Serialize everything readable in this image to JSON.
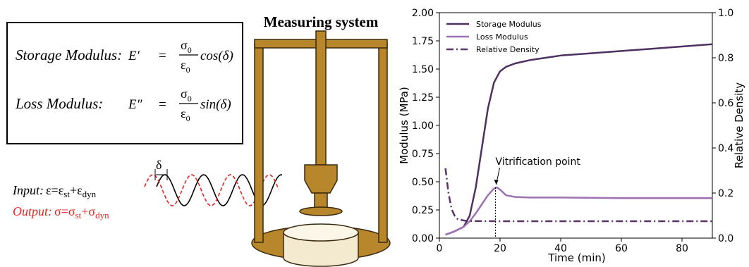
{
  "diagram": {
    "measuring_system": "Measuring system",
    "storage": {
      "label": "Storage Modulus:",
      "lhs": "E′",
      "eq": "=",
      "num": "σ",
      "num_sub": "0",
      "den": "ε",
      "den_sub": "0",
      "func": "cos(δ)"
    },
    "loss": {
      "label": "Loss Modulus:",
      "lhs": "E″",
      "eq": "=",
      "num": "σ",
      "num_sub": "0",
      "den": "ε",
      "den_sub": "0",
      "func": "sin(δ)"
    },
    "delta": "δ",
    "input": {
      "label": "Input:",
      "eq": "ε=ε",
      "sub1": "st",
      "plus": "+ε",
      "sub2": "dyn"
    },
    "output": {
      "label": "Output:",
      "eq": "σ=σ",
      "sub1": "st",
      "plus": "+σ",
      "sub2": "dyn"
    }
  },
  "chart_data": {
    "type": "line",
    "xlabel": "Time (min)",
    "ylabel": "Modulus (MPa)",
    "y2label": "Relative Density",
    "xlim": [
      0,
      90
    ],
    "xticks": [
      0,
      20,
      40,
      60,
      80
    ],
    "ylim": [
      0,
      2
    ],
    "yticks": [
      {
        "value": 0,
        "label": "0.00"
      },
      {
        "value": 0.25,
        "label": "0.25"
      },
      {
        "value": 0.5,
        "label": "0.50"
      },
      {
        "value": 0.75,
        "label": "0.75"
      },
      {
        "value": 1,
        "label": "1.00"
      },
      {
        "value": 1.25,
        "label": "1.25"
      },
      {
        "value": 1.5,
        "label": "1.50"
      },
      {
        "value": 1.75,
        "label": "1.75"
      },
      {
        "value": 2,
        "label": "2.00"
      }
    ],
    "y2lim": [
      0,
      1
    ],
    "y2ticks": [
      {
        "value": 0,
        "label": "0.0"
      },
      0.2,
      0.4,
      0.6,
      0.8,
      {
        "value": 1,
        "label": "1.0"
      }
    ],
    "legend": "upper left",
    "series": [
      {
        "name": "Storage Modulus",
        "color": "#4e3160",
        "linestyle": "solid",
        "x": [
          2,
          5,
          8,
          10,
          12,
          14,
          16,
          18,
          20,
          22,
          25,
          30,
          35,
          40,
          50,
          60,
          70,
          80,
          90
        ],
        "values": [
          0.03,
          0.06,
          0.1,
          0.2,
          0.45,
          0.8,
          1.15,
          1.38,
          1.48,
          1.52,
          1.55,
          1.58,
          1.6,
          1.62,
          1.64,
          1.66,
          1.68,
          1.7,
          1.72
        ]
      },
      {
        "name": "Loss Modulus",
        "color": "#9c72b3",
        "linestyle": "solid",
        "x": [
          2,
          5,
          8,
          10,
          12,
          14,
          16,
          18,
          19,
          20,
          22,
          25,
          30,
          40,
          60,
          80,
          90
        ],
        "values": [
          0.03,
          0.06,
          0.1,
          0.15,
          0.22,
          0.3,
          0.38,
          0.44,
          0.45,
          0.43,
          0.38,
          0.365,
          0.36,
          0.36,
          0.355,
          0.355,
          0.355
        ]
      },
      {
        "name": "Relative Density",
        "color": "#5a3468",
        "linestyle": "dashdot",
        "axis": "y2",
        "x": [
          2,
          3,
          4,
          5,
          6,
          8,
          10,
          20,
          40,
          60,
          90
        ],
        "values": [
          0.31,
          0.2,
          0.13,
          0.1,
          0.085,
          0.078,
          0.076,
          0.075,
          0.075,
          0.075,
          0.075
        ]
      }
    ],
    "annotations": [
      {
        "text": "Vitrification point",
        "x": 18.5,
        "y": 0.45
      }
    ]
  }
}
